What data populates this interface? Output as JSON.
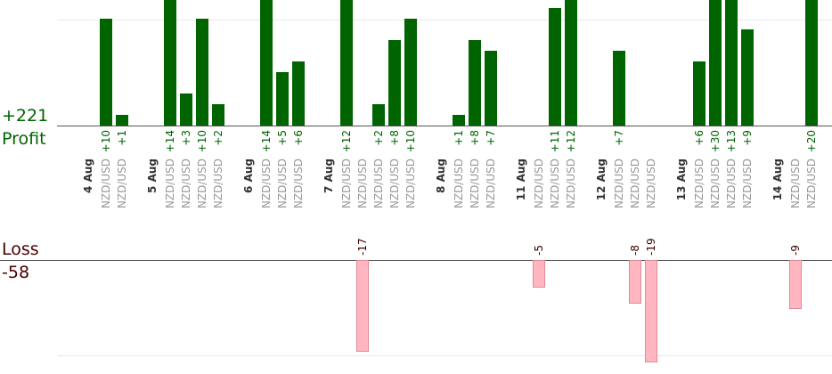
{
  "profit_total": "+221",
  "profit_label": "Profit",
  "loss_label": "Loss",
  "loss_total": "-58",
  "colors": {
    "profit_bar": "#006400",
    "loss_bar": "#ffb6c1",
    "loss_bar_stroke": "#e08a96",
    "profit_text": "#006400",
    "loss_text": "#3b0000",
    "grid": "#e8e8e8",
    "axis": "#555555",
    "date": "#333333",
    "pair": "#999999"
  },
  "chart_data": {
    "type": "bar",
    "profit_axis_max": 10,
    "loss_axis_max": 20,
    "groups": [
      {
        "date": "4 Aug",
        "trades": [
          {
            "pair": "NZD/USD",
            "value": 10
          },
          {
            "pair": "NZD/USD",
            "value": 1
          }
        ]
      },
      {
        "date": "5 Aug",
        "trades": [
          {
            "pair": "NZD/USD",
            "value": 14
          },
          {
            "pair": "NZD/USD",
            "value": 3
          },
          {
            "pair": "NZD/USD",
            "value": 10
          },
          {
            "pair": "NZD/USD",
            "value": 2
          }
        ]
      },
      {
        "date": "6 Aug",
        "trades": [
          {
            "pair": "NZD/USD",
            "value": 14
          },
          {
            "pair": "NZD/USD",
            "value": 5
          },
          {
            "pair": "NZD/USD",
            "value": 6
          }
        ]
      },
      {
        "date": "7 Aug",
        "trades": [
          {
            "pair": "NZD/USD",
            "value": 12
          },
          {
            "pair": "NZD/USD",
            "value": -17
          },
          {
            "pair": "NZD/USD",
            "value": 2
          },
          {
            "pair": "NZD/USD",
            "value": 8
          },
          {
            "pair": "NZD/USD",
            "value": 10
          }
        ]
      },
      {
        "date": "8 Aug",
        "trades": [
          {
            "pair": "NZD/USD",
            "value": 1
          },
          {
            "pair": "NZD/USD",
            "value": 8
          },
          {
            "pair": "NZD/USD",
            "value": 7
          }
        ]
      },
      {
        "date": "11 Aug",
        "trades": [
          {
            "pair": "NZD/USD",
            "value": -5
          },
          {
            "pair": "NZD/USD",
            "value": 11
          },
          {
            "pair": "NZD/USD",
            "value": 12
          }
        ]
      },
      {
        "date": "12 Aug",
        "trades": [
          {
            "pair": "NZD/USD",
            "value": 7
          },
          {
            "pair": "NZD/USD",
            "value": -8
          },
          {
            "pair": "NZD/USD",
            "value": -19
          }
        ]
      },
      {
        "date": "13 Aug",
        "trades": [
          {
            "pair": "NZD/USD",
            "value": 6
          },
          {
            "pair": "NZD/USD",
            "value": 30
          },
          {
            "pair": "NZD/USD",
            "value": 13
          },
          {
            "pair": "NZD/USD",
            "value": 9
          }
        ]
      },
      {
        "date": "14 Aug",
        "trades": [
          {
            "pair": "NZD/USD",
            "value": -9
          },
          {
            "pair": "NZD/USD",
            "value": 20
          }
        ]
      }
    ]
  }
}
